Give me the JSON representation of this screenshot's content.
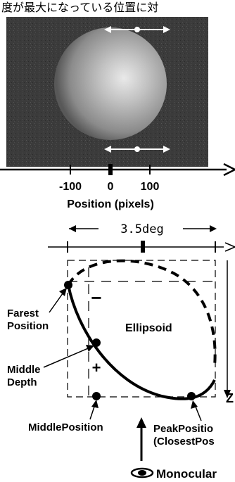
{
  "header_text": "度が最大になっている位置に対",
  "position_axis": {
    "tick_labels": [
      "-100",
      "0",
      "100"
    ],
    "label": "Position (pixels)"
  },
  "diagram": {
    "width_label": "3.5deg",
    "ellipsoid_label": "Ellipsoid",
    "farest_label_1": "Farest",
    "farest_label_2": "Position",
    "middle_depth_1": "Middle",
    "middle_depth_2": "Depth",
    "minus_sign": "−",
    "plus_sign": "+",
    "z_label": "Z",
    "middle_position_label": "MiddlePosition",
    "peak_label_1": "PeakPositio",
    "peak_label_2": "(ClosestPos",
    "monocular_label": "Monocular"
  },
  "colors": {
    "ink": "#000000",
    "photo_bg": "#3a3a3a",
    "sphere": "#a8a8a8"
  }
}
